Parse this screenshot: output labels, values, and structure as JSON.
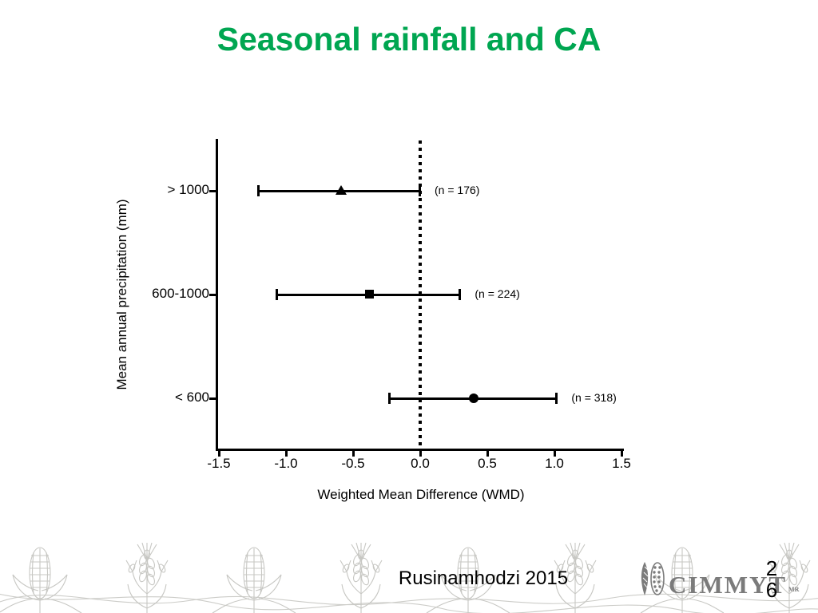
{
  "slide": {
    "title": "Seasonal rainfall and CA",
    "title_color": "#00a651",
    "citation": "Rusinamhodzi 2015",
    "page_number_line1": "2",
    "page_number_line2": "6",
    "logo": {
      "text": "CIMMYT",
      "suffix": "MR",
      "color": "#7b7b7b",
      "icon": "wheat-ears-icon"
    }
  },
  "chart_data": {
    "type": "scatter",
    "subtype": "forest-plot-horizontal-error-bars",
    "title": "",
    "xlabel": "Weighted Mean Difference (WMD)",
    "ylabel": "Mean annual precipitation (mm)",
    "xlim": [
      -1.5,
      1.5
    ],
    "x_ticks": [
      -1.5,
      -1.0,
      -0.5,
      0.0,
      0.5,
      1.0,
      1.5
    ],
    "x_tick_labels": [
      "-1.5",
      "-1.0",
      "-0.5",
      "0.0",
      "0.5",
      "1.0",
      "1.5"
    ],
    "reference_line_x": 0.0,
    "reference_line_style": "dotted",
    "grid": false,
    "categories": [
      "> 1000",
      "600-1000",
      "< 600"
    ],
    "series": [
      {
        "category": "> 1000",
        "mean": -0.59,
        "ci_low": -1.21,
        "ci_high": 0.0,
        "n": 176,
        "n_label": "(n = 176)",
        "marker": "triangle"
      },
      {
        "category": "600-1000",
        "mean": -0.38,
        "ci_low": -1.07,
        "ci_high": 0.3,
        "n": 224,
        "n_label": "(n = 224)",
        "marker": "square"
      },
      {
        "category": "< 600",
        "mean": 0.4,
        "ci_low": -0.23,
        "ci_high": 1.02,
        "n": 318,
        "n_label": "(n = 318)",
        "marker": "circle"
      }
    ],
    "marker_color": "#000000",
    "line_color": "#000000"
  }
}
